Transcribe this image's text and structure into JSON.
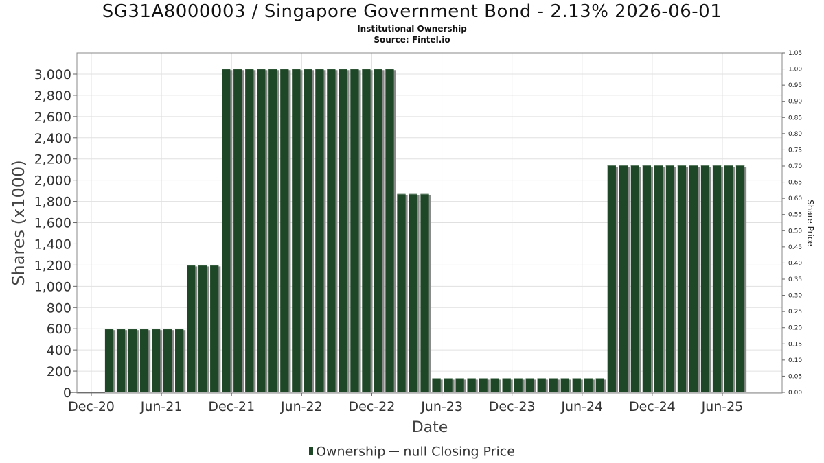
{
  "title": "SG31A8000003 / Singapore Government Bond - 2.13% 2026-06-01",
  "subtitle": "Institutional Ownership",
  "source": "Source: Fintel.io",
  "legend": {
    "ownership": "Ownership",
    "price": "null Closing Price"
  },
  "colors": {
    "bar": "#1d4726",
    "bar_shadow": "#8a8a8a",
    "grid": "#e0e0e0",
    "frame": "#888888"
  },
  "chart_data": {
    "type": "bar",
    "title": "SG31A8000003 / Singapore Government Bond - 2.13% 2026-06-01",
    "xlabel": "Date",
    "ylabel": "Shares (x1000)",
    "y2label": "Share Price",
    "ylim": [
      0,
      3200
    ],
    "y2lim": [
      0,
      1.05
    ],
    "grid": true,
    "legend_position": "bottom",
    "x_ticks": [
      "Dec-20",
      "Jun-21",
      "Dec-21",
      "Jun-22",
      "Dec-22",
      "Jun-23",
      "Dec-23",
      "Jun-24",
      "Dec-24",
      "Jun-25"
    ],
    "y_ticks": [
      "0",
      "200",
      "400",
      "600",
      "800",
      "1,000",
      "1,200",
      "1,400",
      "1,600",
      "1,800",
      "2,000",
      "2,200",
      "2,400",
      "2,600",
      "2,800",
      "3,000"
    ],
    "y2_ticks": [
      "0.00",
      "0.05",
      "0.10",
      "0.15",
      "0.20",
      "0.25",
      "0.30",
      "0.35",
      "0.40",
      "0.45",
      "0.50",
      "0.55",
      "0.60",
      "0.65",
      "0.70",
      "0.75",
      "0.80",
      "0.85",
      "0.90",
      "0.95",
      "1.00",
      "1.05"
    ],
    "series": [
      {
        "name": "Ownership",
        "values": [
          0,
          0,
          0,
          600,
          600,
          600,
          600,
          600,
          600,
          600,
          1200,
          1200,
          1200,
          3050,
          3050,
          3050,
          3050,
          3050,
          3050,
          3050,
          3050,
          3050,
          3050,
          3050,
          3050,
          3050,
          3050,
          3050,
          1870,
          1870,
          1870,
          133,
          133,
          133,
          133,
          133,
          133,
          133,
          133,
          133,
          133,
          133,
          133,
          133,
          133,
          133,
          2140,
          2140,
          2140,
          2140,
          2140,
          2140,
          2140,
          2140,
          2140,
          2140,
          2140,
          2140
        ]
      }
    ]
  }
}
